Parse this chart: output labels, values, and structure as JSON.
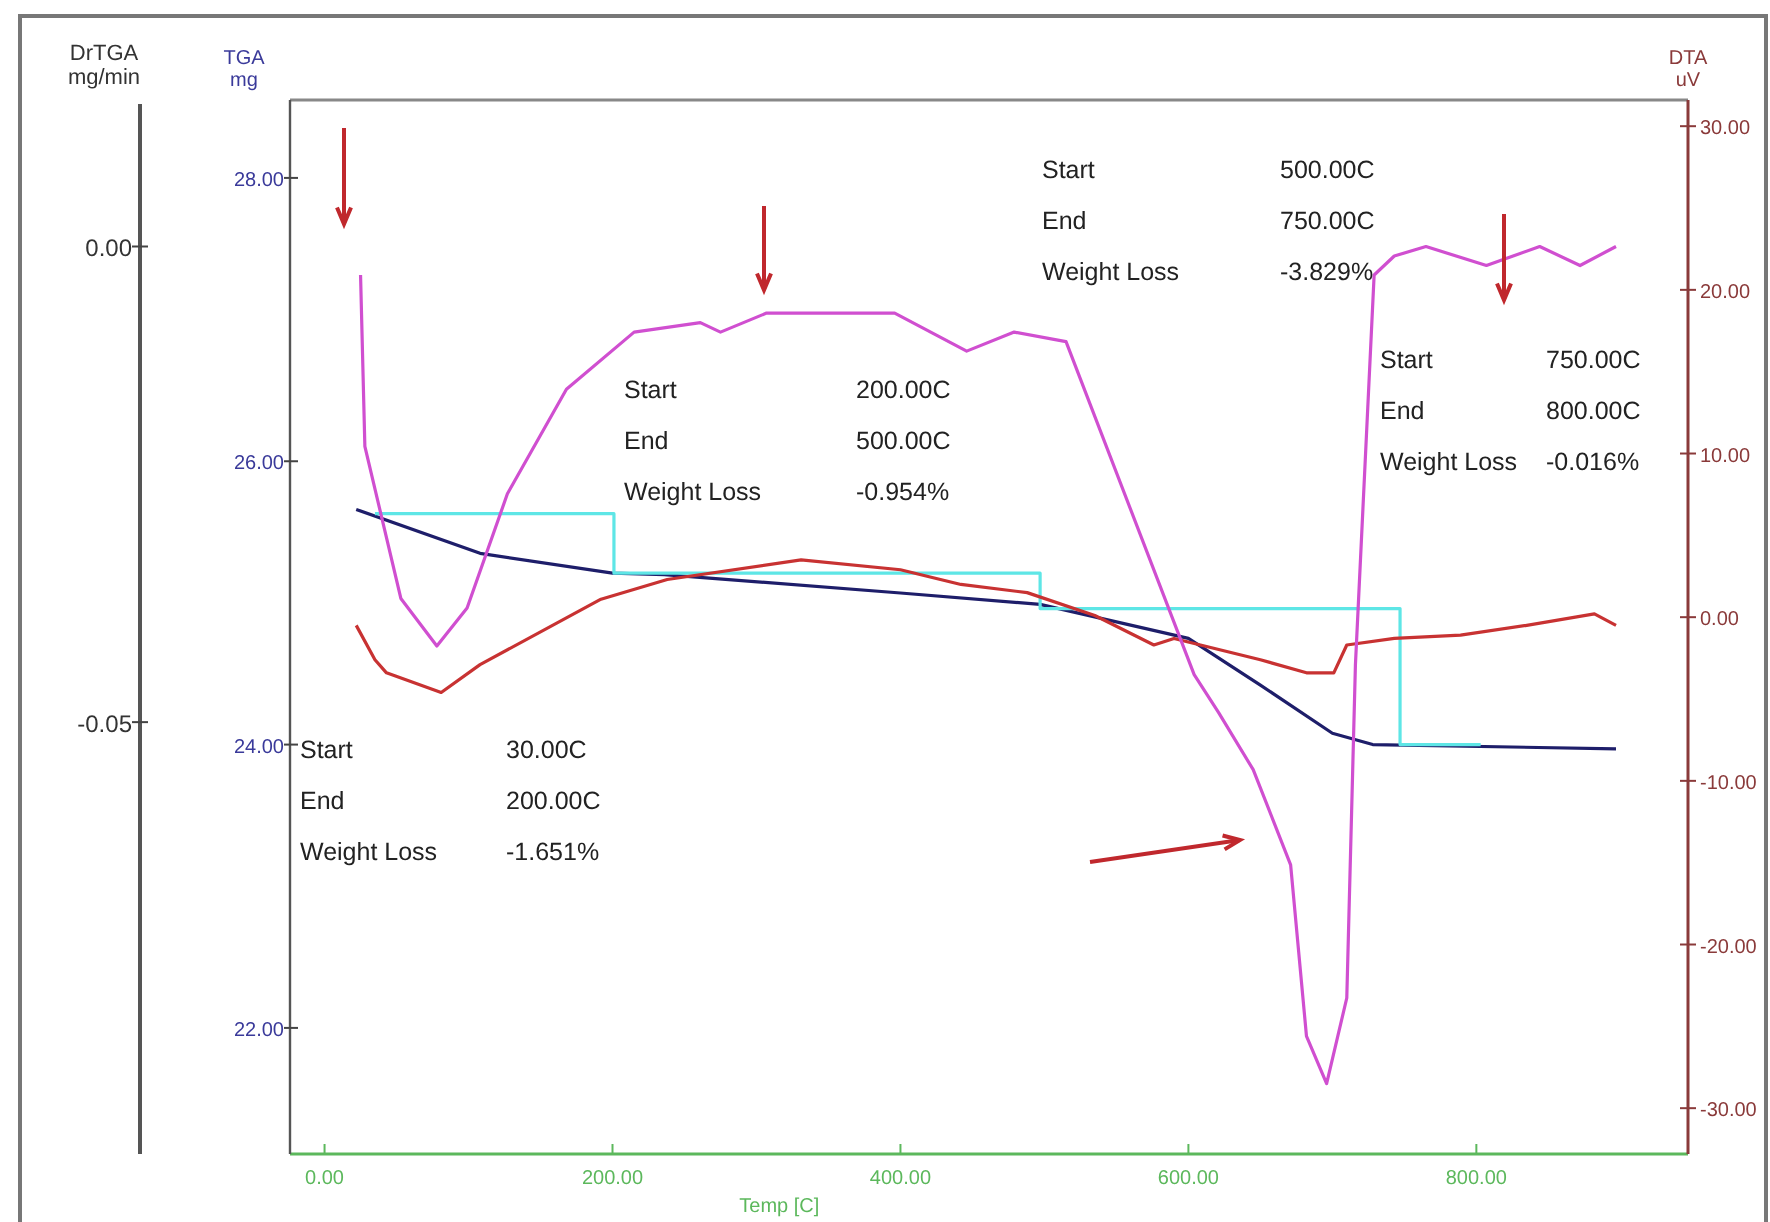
{
  "chart_data": {
    "type": "line",
    "xlabel": "Temp [C]",
    "ylabel": "TGA mg",
    "y2label": "DTA uV",
    "y3label": "DrTGA mg/min",
    "xlim": [
      -24,
      947
    ],
    "xticks": [
      {
        "value": 0,
        "label": "0.00"
      },
      {
        "value": 200,
        "label": "200.00"
      },
      {
        "value": 400,
        "label": "400.00"
      },
      {
        "value": 600,
        "label": "600.00"
      },
      {
        "value": 800,
        "label": "800.00"
      }
    ],
    "ylim": [
      21.11,
      28.55
    ],
    "yticks": [
      {
        "value": 22,
        "label": "22.00"
      },
      {
        "value": 24,
        "label": "24.00"
      },
      {
        "value": 26,
        "label": "26.00"
      },
      {
        "value": 28,
        "label": "28.00"
      }
    ],
    "y2lim": [
      -32.8,
      31.6
    ],
    "y2ticks": [
      {
        "value": -30,
        "label": "-30.00"
      },
      {
        "value": -20,
        "label": "-20.00"
      },
      {
        "value": -10,
        "label": "-10.00"
      },
      {
        "value": 0,
        "label": "0.00"
      },
      {
        "value": 10,
        "label": "10.00"
      },
      {
        "value": 20,
        "label": "20.00"
      },
      {
        "value": 30,
        "label": "30.00"
      }
    ],
    "y3lim": [
      -0.0954,
      0.0154
    ],
    "y3ticks": [
      {
        "value": -0.05,
        "label": "-0.05"
      },
      {
        "value": 0,
        "label": "0.00"
      }
    ],
    "marker": "none",
    "series": [
      {
        "color": "#1e1e6a",
        "axis": "y",
        "x": [
          22,
          108,
          200,
          236,
          400,
          497,
          600,
          650,
          700,
          728,
          897
        ],
        "values": [
          25.66,
          25.35,
          25.21,
          25.2,
          25.07,
          24.99,
          24.75,
          24.42,
          24.08,
          24.0,
          23.97
        ]
      },
      {
        "color": "#5ee6e6",
        "axis": "y",
        "x": [
          35,
          201,
          201,
          497,
          497,
          747,
          747,
          803
        ],
        "values": [
          25.63,
          25.63,
          25.21,
          25.21,
          24.96,
          24.96,
          24.0,
          24.0
        ]
      },
      {
        "color": "#c83232",
        "axis": "y2",
        "x": [
          22,
          35,
          43,
          81,
          108,
          192,
          238,
          331,
          400,
          442,
          488,
          535,
          576,
          590,
          650,
          682,
          701,
          710,
          743,
          789,
          835,
          882,
          897
        ],
        "values": [
          -0.5,
          -2.6,
          -3.4,
          -4.6,
          -2.9,
          1.1,
          2.3,
          3.5,
          2.9,
          2.0,
          1.5,
          0.1,
          -1.7,
          -1.3,
          -2.6,
          -3.4,
          -3.4,
          -1.7,
          -1.3,
          -1.1,
          -0.5,
          0.2,
          -0.5
        ]
      },
      {
        "color": "#d04fd0",
        "axis": "y3",
        "x": [
          25,
          28,
          53,
          78,
          99,
          127,
          168,
          215,
          261,
          275,
          307,
          354,
          396,
          446,
          479,
          515,
          604,
          621,
          645,
          671,
          682,
          696,
          710,
          716,
          729,
          743,
          765,
          807,
          844,
          872,
          897
        ],
        "values": [
          -0.003,
          -0.021,
          -0.037,
          -0.042,
          -0.038,
          -0.026,
          -0.015,
          -0.009,
          -0.008,
          -0.009,
          -0.007,
          -0.007,
          -0.007,
          -0.011,
          -0.009,
          -0.01,
          -0.045,
          -0.049,
          -0.055,
          -0.065,
          -0.083,
          -0.088,
          -0.079,
          -0.044,
          -0.003,
          -0.001,
          0.0,
          -0.002,
          0.0,
          -0.002,
          0.0
        ]
      }
    ],
    "annotations": [
      "Start",
      "30.00C",
      "End",
      "200.00C",
      "Weight Loss",
      "-1.651%",
      "Start",
      "200.00C",
      "End",
      "500.00C",
      "Weight Loss",
      "-0.954%",
      "Start",
      "500.00C",
      "End",
      "750.00C",
      "Weight Loss",
      "-3.829%",
      "Start",
      "750.00C",
      "End",
      "800.00C",
      "Weight Loss",
      "-0.016%"
    ]
  }
}
